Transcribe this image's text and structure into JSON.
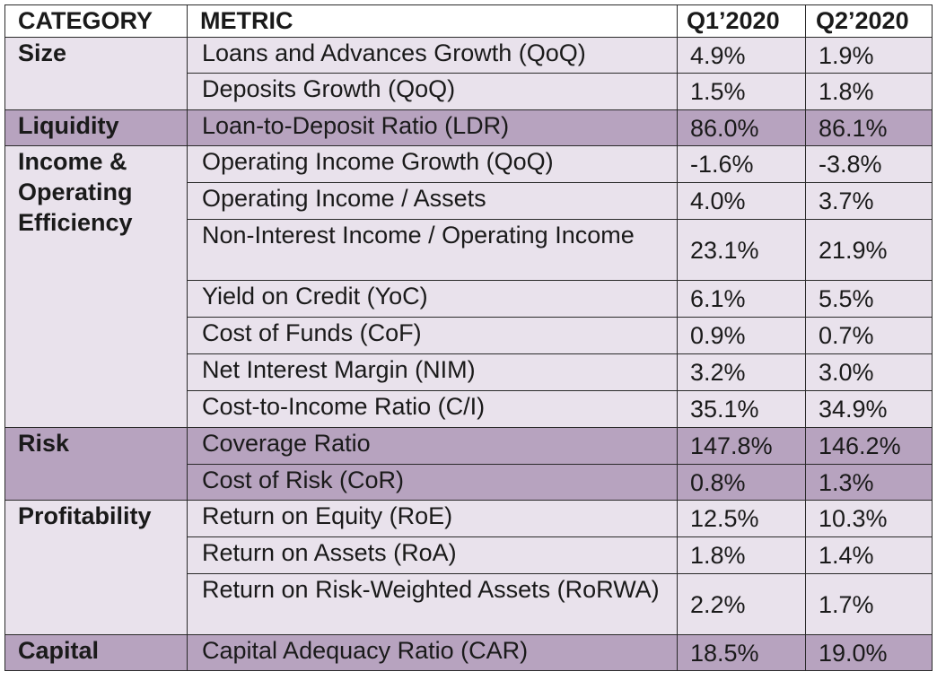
{
  "header": {
    "category": "CATEGORY",
    "metric": "METRIC",
    "q1": "Q1’2020",
    "q2": "Q2’2020"
  },
  "rows": [
    {
      "category": "Size",
      "metric": "Loans and Advances Growth (QoQ)",
      "q1": "4.9%",
      "q2": "1.9%"
    },
    {
      "metric": "Deposits Growth (QoQ)",
      "q1": "1.5%",
      "q2": "1.8%"
    },
    {
      "category": "Liquidity",
      "metric": "Loan-to-Deposit Ratio (LDR)",
      "q1": "86.0%",
      "q2": "86.1%"
    },
    {
      "category": "Income & Operating Efficiency",
      "metric": "Operating Income Growth (QoQ)",
      "q1": "-1.6%",
      "q2": "-3.8%"
    },
    {
      "metric": "Operating Income / Assets",
      "q1": "4.0%",
      "q2": "3.7%"
    },
    {
      "metric": "Non-Interest Income / Operating Income",
      "q1": "23.1%",
      "q2": "21.9%"
    },
    {
      "metric": "Yield on Credit (YoC)",
      "q1": "6.1%",
      "q2": "5.5%"
    },
    {
      "metric": "Cost of Funds (CoF)",
      "q1": "0.9%",
      "q2": "0.7%"
    },
    {
      "metric": "Net Interest Margin (NIM)",
      "q1": "3.2%",
      "q2": "3.0%"
    },
    {
      "metric": "Cost-to-Income Ratio (C/I)",
      "q1": "35.1%",
      "q2": "34.9%"
    },
    {
      "category": "Risk",
      "metric": "Coverage Ratio",
      "q1": "147.8%",
      "q2": "146.2%"
    },
    {
      "metric": "Cost of Risk (CoR)",
      "q1": "0.8%",
      "q2": "1.3%"
    },
    {
      "category": "Profitability",
      "metric": "Return on Equity (RoE)",
      "q1": "12.5%",
      "q2": "10.3%"
    },
    {
      "metric": "Return on Assets (RoA)",
      "q1": "1.8%",
      "q2": "1.4%"
    },
    {
      "metric": "Return on Risk-Weighted Assets (RoRWA)",
      "q1": "2.2%",
      "q2": "1.7%"
    },
    {
      "category": "Capital",
      "metric": "Capital Adequacy Ratio (CAR)",
      "q1": "18.5%",
      "q2": "19.0%"
    }
  ],
  "colors": {
    "light_row": "#e9e2ec",
    "dark_row": "#b7a3bf",
    "border": "#2a2a2a"
  }
}
